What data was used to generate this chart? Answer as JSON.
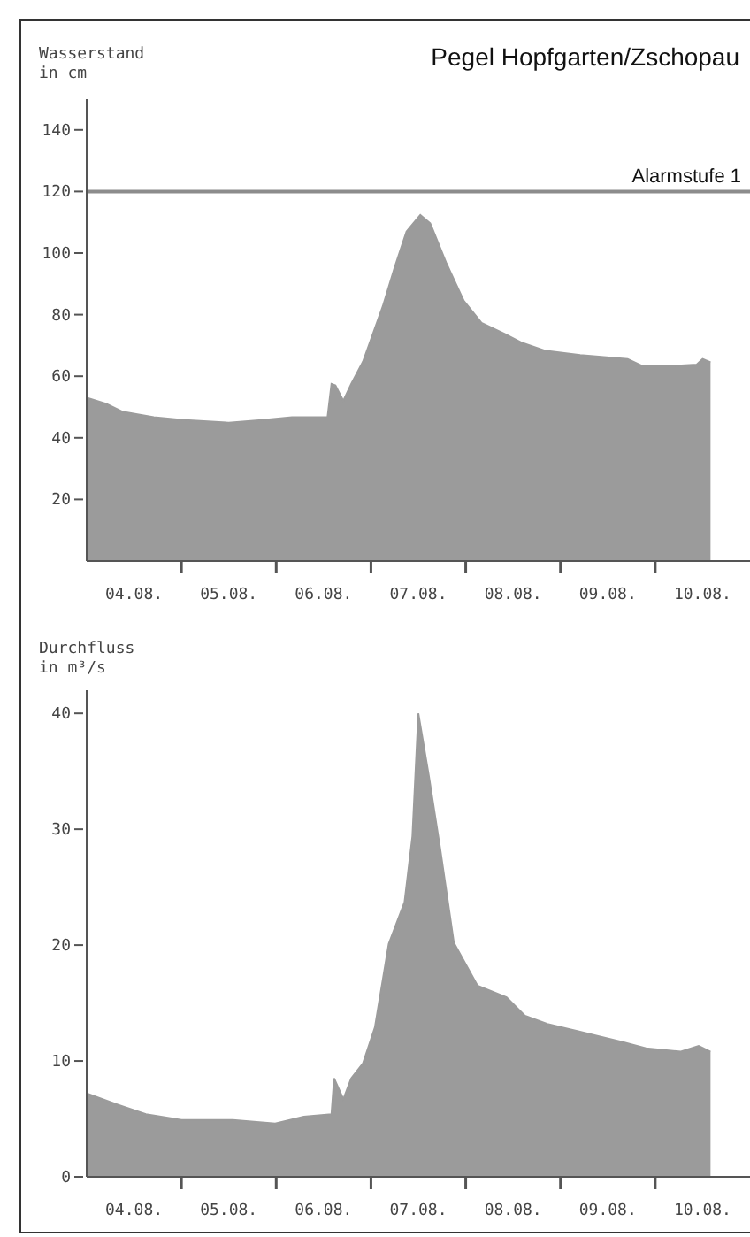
{
  "chart_data": [
    {
      "type": "area",
      "title": "Pegel Hopfgarten/Zschopau",
      "ylabel": "Wasserstand\nin cm",
      "x": [
        "--08-04T00:00",
        "--08-04T05:00",
        "--08-04T09:00",
        "--08-04T17:00",
        "--08-05T00:00",
        "--08-05T12:00",
        "--08-05T21:00",
        "--08-06T04:00",
        "--08-06T13:00",
        "--08-06T14:00",
        "--08-06T15:00",
        "--08-06T17:00",
        "--08-06T19:00",
        "--08-06T22:00",
        "--08-07T03:00",
        "--08-07T06:00",
        "--08-07T09:00",
        "--08-07T12:30",
        "--08-07T15:00",
        "--08-07T19:00",
        "--08-07T23:30",
        "--08-08T04:00",
        "--08-08T10:00",
        "--08-08T14:00",
        "--08-08T20:00",
        "--08-09T05:00",
        "--08-09T17:00",
        "--08-09T21:00",
        "--08-10T03:00",
        "--08-10T10:30",
        "--08-10T12:00",
        "--08-10T14:00"
      ],
      "series": [
        {
          "color": "#9b9b9b",
          "values": [
            53,
            51,
            48.5,
            46.7,
            45.8,
            44.9,
            45.8,
            46.7,
            46.7,
            57.5,
            57,
            52,
            57.5,
            64.8,
            82.7,
            95.3,
            107,
            112.4,
            109.7,
            97,
            84.5,
            77.3,
            73.7,
            71,
            68.3,
            66.9,
            65.6,
            63.2,
            63.2,
            63.8,
            65.6,
            64.5
          ]
        }
      ],
      "xlim": [
        "--08-04T00:00",
        "--08-11T00:00"
      ],
      "xticks": [
        {
          "value": "--08-04T12:00",
          "label": "04.08."
        },
        {
          "value": "--08-05T00:00",
          "label": null
        },
        {
          "value": "--08-05T12:00",
          "label": "05.08."
        },
        {
          "value": "--08-06T00:00",
          "label": null
        },
        {
          "value": "--08-06T12:00",
          "label": "06.08."
        },
        {
          "value": "--08-07T00:00",
          "label": null
        },
        {
          "value": "--08-07T12:00",
          "label": "07.08."
        },
        {
          "value": "--08-08T00:00",
          "label": null
        },
        {
          "value": "--08-08T12:00",
          "label": "08.08."
        },
        {
          "value": "--08-09T00:00",
          "label": null
        },
        {
          "value": "--08-09T12:00",
          "label": "09.08."
        },
        {
          "value": "--08-10T00:00",
          "label": null
        },
        {
          "value": "--08-10T12:00",
          "label": "10.08."
        }
      ],
      "ylim": [
        0,
        150
      ],
      "yticks": [
        20,
        40,
        60,
        80,
        100,
        120,
        140
      ],
      "grid": false,
      "legend": false,
      "ref_lines": [
        {
          "axis": "y",
          "value": 120,
          "label": "Alarmstufe 1",
          "color": "#8c8c8c"
        }
      ]
    },
    {
      "type": "area",
      "ylabel": "Durchfluss\nin m³/s",
      "x": [
        "--08-04T00:00",
        "--08-04T08:00",
        "--08-04T15:00",
        "--08-05T00:00",
        "--08-05T13:00",
        "--08-05T23:45",
        "--08-06T07:00",
        "--08-06T14:00",
        "--08-06T14:40",
        "--08-06T17:00",
        "--08-06T19:00",
        "--08-06T22:00",
        "--08-07T01:00",
        "--08-07T04:30",
        "--08-07T08:30",
        "--08-07T10:30",
        "--08-07T12:00",
        "--08-07T14:40",
        "--08-07T17:30",
        "--08-07T21:00",
        "--08-08T03:00",
        "--08-08T10:20",
        "--08-08T15:00",
        "--08-08T20:40",
        "--08-09T04:00",
        "--08-09T16:00",
        "--08-09T21:40",
        "--08-10T06:30",
        "--08-10T11:00",
        "--08-10T14:00"
      ],
      "series": [
        {
          "color": "#9b9b9b",
          "values": [
            7.2,
            6.2,
            5.4,
            4.9,
            4.9,
            4.6,
            5.2,
            5.4,
            8.5,
            6.7,
            8.5,
            9.8,
            12.9,
            20.1,
            23.7,
            29.4,
            40,
            34.6,
            28.4,
            20.2,
            16.5,
            15.5,
            13.9,
            13.2,
            12.6,
            11.6,
            11.1,
            10.8,
            11.3,
            10.8
          ]
        }
      ],
      "xlim": [
        "--08-04T00:00",
        "--08-11T00:00"
      ],
      "xticks": [
        {
          "value": "--08-04T12:00",
          "label": "04.08."
        },
        {
          "value": "--08-05T00:00",
          "label": null
        },
        {
          "value": "--08-05T12:00",
          "label": "05.08."
        },
        {
          "value": "--08-06T00:00",
          "label": null
        },
        {
          "value": "--08-06T12:00",
          "label": "06.08."
        },
        {
          "value": "--08-07T00:00",
          "label": null
        },
        {
          "value": "--08-07T12:00",
          "label": "07.08."
        },
        {
          "value": "--08-08T00:00",
          "label": null
        },
        {
          "value": "--08-08T12:00",
          "label": "08.08."
        },
        {
          "value": "--08-09T00:00",
          "label": null
        },
        {
          "value": "--08-09T12:00",
          "label": "09.08."
        },
        {
          "value": "--08-10T00:00",
          "label": null
        },
        {
          "value": "--08-10T12:00",
          "label": "10.08."
        }
      ],
      "ylim": [
        0,
        42
      ],
      "yticks": [
        0,
        10,
        20,
        30,
        40
      ],
      "grid": false,
      "legend": false
    }
  ]
}
